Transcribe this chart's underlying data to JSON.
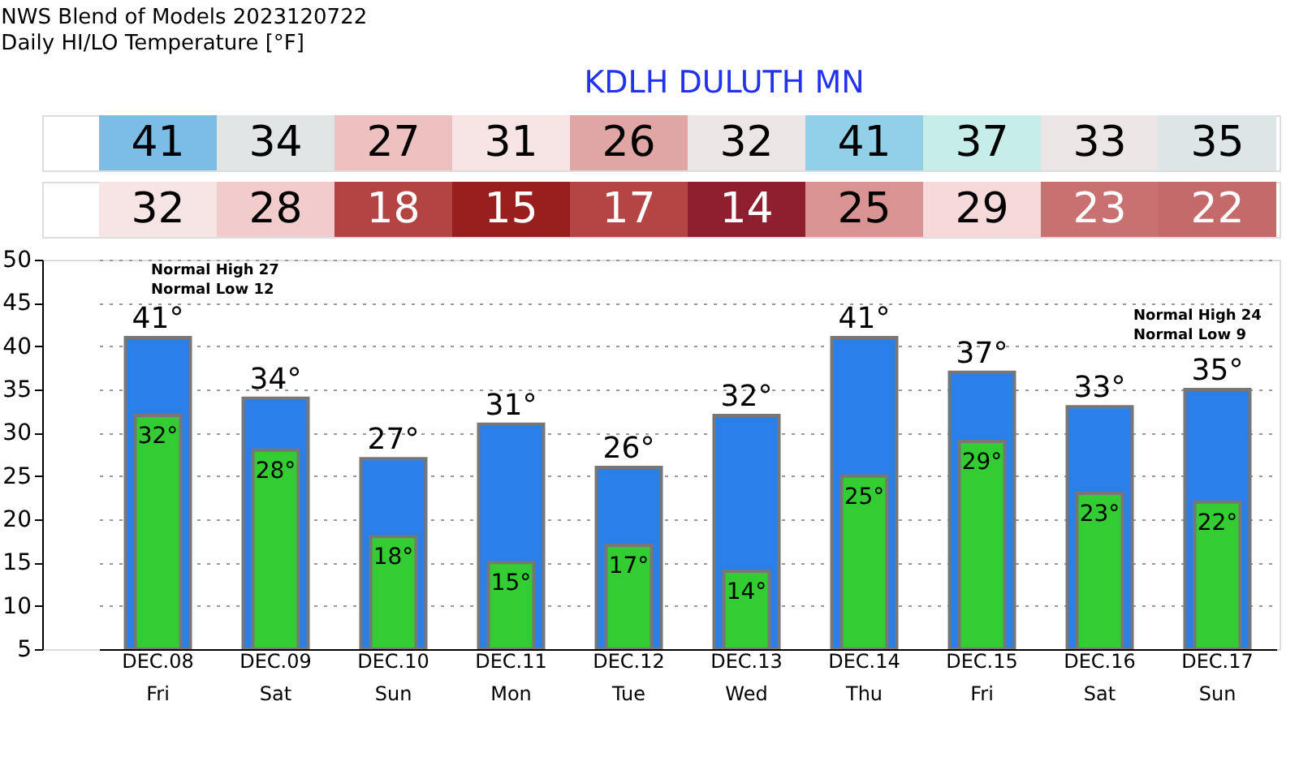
{
  "chart_data": [
    {
      "type": "other",
      "title": "NWS Blend of Models 2023120722",
      "subtitle": "Daily HI/LO Temperature [°F]",
      "annotations": [
        "KDLH   DULUTH        MN"
      ],
      "values": [
        41,
        34,
        27,
        31,
        26,
        32,
        41,
        37,
        33,
        35
      ],
      "data_labels": true,
      "colors": [
        "#7bbde4",
        "#e1e5e6",
        "#eec1c1",
        "#f7e5e5",
        "#e0a5a5",
        "#ece5e5",
        "#92cfe8",
        "#c7ede9",
        "#ece5e5",
        "#dde6e6"
      ]
    },
    {
      "type": "other",
      "values": [
        32,
        28,
        18,
        15,
        17,
        14,
        25,
        29,
        23,
        22
      ],
      "data_labels": true,
      "colors": [
        "#f7e5e5",
        "#f2cccc",
        "#b44444",
        "#991f1f",
        "#b54545",
        "#8f1f2e",
        "#d99393",
        "#f7d9d9",
        "#c97070",
        "#c46a6a"
      ]
    },
    {
      "type": "bar",
      "annotations": [
        "Normal High 27\nNormal Low 12",
        "Normal High 24\nNormal Low 9"
      ],
      "categories": [
        "DEC.08\nFri",
        "DEC.09\nSat",
        "DEC.10\nSun",
        "DEC.11\nMon",
        "DEC.12\nTue",
        "DEC.13\nWed",
        "DEC.14\nThu",
        "DEC.15\nFri",
        "DEC.16\nSat",
        "DEC.17\nSun"
      ],
      "series": [
        {
          "color": "#2a7fe8",
          "values": [
            41,
            34,
            27,
            31,
            26,
            32,
            41,
            37,
            33,
            35
          ],
          "value_labels": [
            "41°",
            "34°",
            "27°",
            "31°",
            "26°",
            "32°",
            "41°",
            "37°",
            "33°",
            "35°"
          ]
        },
        {
          "color": "#33cc33",
          "values": [
            32,
            28,
            18,
            15,
            17,
            14,
            25,
            29,
            23,
            22
          ],
          "value_labels": [
            "32°",
            "28°",
            "18°",
            "15°",
            "17°",
            "14°",
            "25°",
            "29°",
            "23°",
            "22°"
          ]
        }
      ],
      "ylim": [
        5,
        50
      ],
      "yticks": [
        5,
        10,
        15,
        20,
        25,
        30,
        35,
        40,
        45,
        50
      ],
      "grid": "y"
    }
  ]
}
